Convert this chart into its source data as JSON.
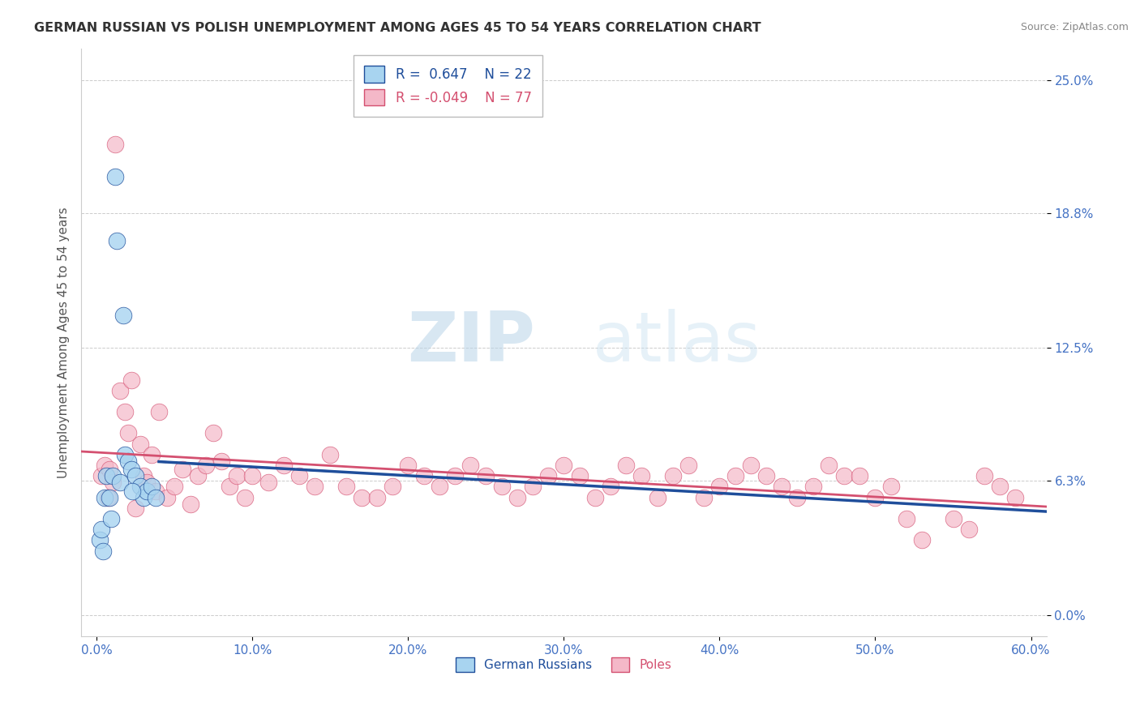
{
  "title": "GERMAN RUSSIAN VS POLISH UNEMPLOYMENT AMONG AGES 45 TO 54 YEARS CORRELATION CHART",
  "source": "Source: ZipAtlas.com",
  "xlabel_vals": [
    0.0,
    10.0,
    20.0,
    30.0,
    40.0,
    50.0,
    60.0
  ],
  "ylabel_vals": [
    0.0,
    6.3,
    12.5,
    18.8,
    25.0
  ],
  "ylabel_label": "Unemployment Among Ages 45 to 54 years",
  "xmin": -1.0,
  "xmax": 61.0,
  "ymin": -1.0,
  "ymax": 26.5,
  "r_russian": 0.647,
  "n_russian": 22,
  "r_polish": -0.049,
  "n_polish": 77,
  "color_russian": "#A8D4F0",
  "color_russian_line": "#1F4E9B",
  "color_polish": "#F4B8C8",
  "color_polish_line": "#D45070",
  "background_color": "#ffffff",
  "watermark_zip": "ZIP",
  "watermark_atlas": "atlas",
  "russian_x": [
    0.2,
    0.3,
    0.5,
    0.6,
    0.8,
    1.0,
    1.2,
    1.5,
    1.8,
    2.0,
    2.2,
    2.5,
    2.8,
    3.0,
    3.2,
    3.5,
    3.8,
    0.4,
    0.9,
    1.3,
    1.7,
    2.3
  ],
  "russian_y": [
    3.5,
    4.0,
    5.5,
    6.5,
    5.5,
    6.5,
    20.5,
    6.2,
    7.5,
    7.2,
    6.8,
    6.5,
    6.0,
    5.5,
    5.8,
    6.0,
    5.5,
    3.0,
    4.5,
    17.5,
    14.0,
    5.8
  ],
  "polish_x": [
    0.3,
    0.5,
    0.7,
    0.8,
    1.0,
    1.2,
    1.5,
    1.8,
    2.0,
    2.2,
    2.5,
    2.8,
    3.0,
    3.2,
    3.5,
    3.8,
    4.0,
    4.5,
    5.0,
    5.5,
    6.0,
    6.5,
    7.0,
    7.5,
    8.0,
    8.5,
    9.0,
    9.5,
    10.0,
    11.0,
    12.0,
    13.0,
    14.0,
    15.0,
    16.0,
    17.0,
    18.0,
    19.0,
    20.0,
    21.0,
    22.0,
    23.0,
    24.0,
    25.0,
    26.0,
    27.0,
    28.0,
    29.0,
    30.0,
    31.0,
    32.0,
    33.0,
    34.0,
    35.0,
    36.0,
    37.0,
    38.0,
    39.0,
    40.0,
    41.0,
    42.0,
    43.0,
    44.0,
    45.0,
    46.0,
    47.0,
    48.0,
    49.0,
    50.0,
    51.0,
    52.0,
    53.0,
    55.0,
    56.0,
    57.0,
    58.0,
    59.0
  ],
  "polish_y": [
    6.5,
    7.0,
    5.5,
    6.8,
    6.2,
    22.0,
    10.5,
    9.5,
    8.5,
    11.0,
    5.0,
    8.0,
    6.5,
    6.2,
    7.5,
    5.8,
    9.5,
    5.5,
    6.0,
    6.8,
    5.2,
    6.5,
    7.0,
    8.5,
    7.2,
    6.0,
    6.5,
    5.5,
    6.5,
    6.2,
    7.0,
    6.5,
    6.0,
    7.5,
    6.0,
    5.5,
    5.5,
    6.0,
    7.0,
    6.5,
    6.0,
    6.5,
    7.0,
    6.5,
    6.0,
    5.5,
    6.0,
    6.5,
    7.0,
    6.5,
    5.5,
    6.0,
    7.0,
    6.5,
    5.5,
    6.5,
    7.0,
    5.5,
    6.0,
    6.5,
    7.0,
    6.5,
    6.0,
    5.5,
    6.0,
    7.0,
    6.5,
    6.5,
    5.5,
    6.0,
    4.5,
    3.5,
    4.5,
    4.0,
    6.5,
    6.0,
    5.5
  ]
}
